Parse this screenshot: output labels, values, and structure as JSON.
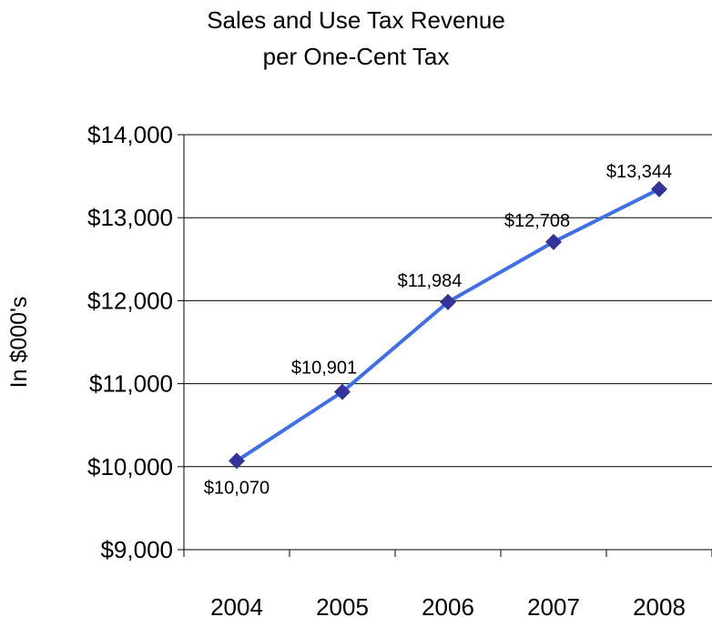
{
  "chart_data": {
    "type": "line",
    "title_line1": "Sales and Use Tax Revenue",
    "title_line2": "per One-Cent Tax",
    "xlabel": "",
    "ylabel": "In $000's",
    "categories": [
      "2004",
      "2005",
      "2006",
      "2007",
      "2008"
    ],
    "series": [
      {
        "values": [
          10070,
          10901,
          11984,
          12708,
          13344
        ]
      }
    ],
    "data_labels": [
      "$10,070",
      "$10,901",
      "$11,984",
      "$12,708",
      "$13,344"
    ],
    "ylim": [
      9000,
      14000
    ],
    "yticks": [
      9000,
      10000,
      11000,
      12000,
      13000,
      14000
    ],
    "ytick_labels": [
      "$9,000",
      "$10,000",
      "$11,000",
      "$12,000",
      "$13,000",
      "$14,000"
    ],
    "grid": true,
    "legend": "none",
    "line_color": "#3F6FE8",
    "marker_color": "#333399",
    "marker_shape": "diamond"
  }
}
